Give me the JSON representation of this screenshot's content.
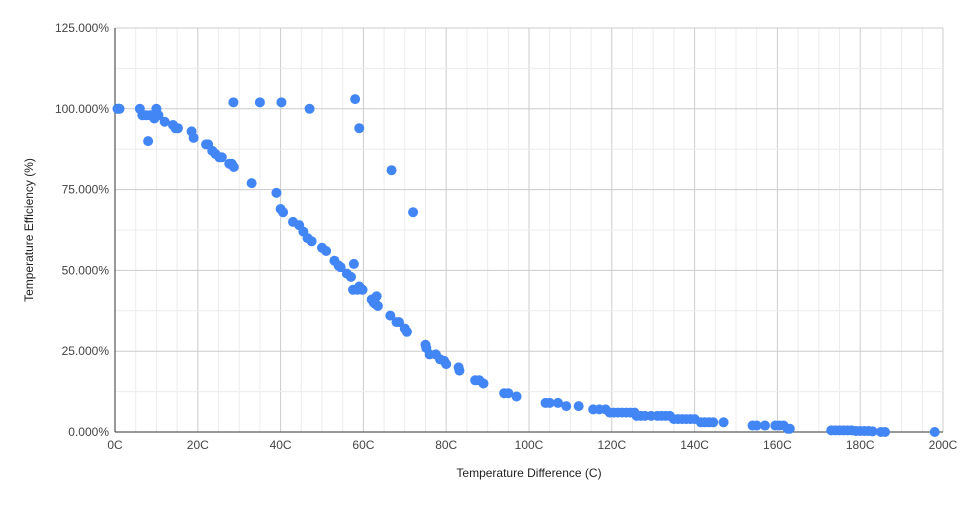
{
  "chart_data": {
    "type": "scatter",
    "title": "",
    "xlabel": "Temperature Difference (C)",
    "ylabel": "Temperature Efficiency (%)",
    "xlim": [
      0,
      200
    ],
    "ylim": [
      0,
      125
    ],
    "x_ticks": [
      0,
      20,
      40,
      60,
      80,
      100,
      120,
      140,
      160,
      180,
      200
    ],
    "x_tick_labels": [
      "0C",
      "20C",
      "40C",
      "60C",
      "80C",
      "100C",
      "120C",
      "140C",
      "160C",
      "180C",
      "200C"
    ],
    "y_ticks": [
      0,
      25,
      50,
      75,
      100,
      125
    ],
    "y_tick_labels": [
      "0.000%",
      "25.000%",
      "50.000%",
      "75.000%",
      "100.000%",
      "125.000%"
    ],
    "grid": true,
    "legend": "none",
    "color": "#4285f4",
    "points": [
      [
        0.6,
        100
      ],
      [
        0.9,
        100
      ],
      [
        1.1,
        100
      ],
      [
        6,
        100
      ],
      [
        6.6,
        98
      ],
      [
        7.5,
        98
      ],
      [
        8,
        90
      ],
      [
        8.5,
        98
      ],
      [
        9,
        98
      ],
      [
        9.5,
        97
      ],
      [
        10,
        100
      ],
      [
        10.5,
        98
      ],
      [
        12,
        96
      ],
      [
        14,
        95
      ],
      [
        14.6,
        94
      ],
      [
        15.2,
        94
      ],
      [
        18.5,
        93
      ],
      [
        19,
        91
      ],
      [
        22,
        89
      ],
      [
        22.5,
        89
      ],
      [
        23.5,
        87
      ],
      [
        24.3,
        86
      ],
      [
        25.2,
        85
      ],
      [
        25.8,
        85
      ],
      [
        27.6,
        83
      ],
      [
        28.2,
        83
      ],
      [
        28.7,
        82
      ],
      [
        28.6,
        102
      ],
      [
        33,
        77
      ],
      [
        35,
        102
      ],
      [
        39,
        74
      ],
      [
        40,
        69
      ],
      [
        40.2,
        102
      ],
      [
        40.6,
        68
      ],
      [
        43,
        65
      ],
      [
        44.5,
        64
      ],
      [
        45.5,
        62
      ],
      [
        46.5,
        60
      ],
      [
        47.5,
        59
      ],
      [
        47,
        100
      ],
      [
        50,
        57
      ],
      [
        51,
        56
      ],
      [
        53,
        53
      ],
      [
        54,
        51.5
      ],
      [
        54.5,
        51
      ],
      [
        56,
        49
      ],
      [
        57,
        48
      ],
      [
        57.5,
        44
      ],
      [
        57.7,
        52
      ],
      [
        58,
        103
      ],
      [
        58.5,
        44
      ],
      [
        59,
        94
      ],
      [
        59,
        45
      ],
      [
        59.8,
        44
      ],
      [
        62,
        41
      ],
      [
        62.5,
        40
      ],
      [
        63,
        39.5
      ],
      [
        63.2,
        42
      ],
      [
        63.5,
        39
      ],
      [
        66.5,
        36
      ],
      [
        66.8,
        81
      ],
      [
        68,
        34
      ],
      [
        68.6,
        34
      ],
      [
        70,
        32
      ],
      [
        70.5,
        31
      ],
      [
        72,
        68
      ],
      [
        75,
        27
      ],
      [
        75.2,
        26
      ],
      [
        76,
        24
      ],
      [
        77.5,
        24
      ],
      [
        78.5,
        22.5
      ],
      [
        79.5,
        22
      ],
      [
        80,
        21
      ],
      [
        83,
        20
      ],
      [
        83.2,
        19
      ],
      [
        87,
        16
      ],
      [
        88,
        16
      ],
      [
        89,
        15
      ],
      [
        94,
        12
      ],
      [
        95,
        12
      ],
      [
        97,
        11
      ],
      [
        104,
        9
      ],
      [
        105,
        9
      ],
      [
        107,
        9
      ],
      [
        109,
        8
      ],
      [
        112,
        8
      ],
      [
        115.5,
        7
      ],
      [
        117,
        7
      ],
      [
        118.5,
        7
      ],
      [
        119.5,
        6
      ],
      [
        120.5,
        6
      ],
      [
        121.5,
        6
      ],
      [
        122.5,
        6
      ],
      [
        123.5,
        6
      ],
      [
        124.5,
        6
      ],
      [
        125.5,
        6
      ],
      [
        126,
        5
      ],
      [
        127,
        5
      ],
      [
        128,
        5
      ],
      [
        129.5,
        5
      ],
      [
        131,
        5
      ],
      [
        132,
        5
      ],
      [
        133,
        5
      ],
      [
        134,
        5
      ],
      [
        135,
        4
      ],
      [
        136,
        4
      ],
      [
        137,
        4
      ],
      [
        138,
        4
      ],
      [
        139,
        4
      ],
      [
        140,
        4
      ],
      [
        141.5,
        3
      ],
      [
        142.5,
        3
      ],
      [
        143.5,
        3
      ],
      [
        144.5,
        3
      ],
      [
        147,
        3
      ],
      [
        154,
        2
      ],
      [
        155,
        2
      ],
      [
        157,
        2
      ],
      [
        159.5,
        2
      ],
      [
        160.5,
        2
      ],
      [
        161.5,
        2
      ],
      [
        162.5,
        1
      ],
      [
        163,
        1
      ],
      [
        173,
        0.5
      ],
      [
        174,
        0.5
      ],
      [
        175,
        0.5
      ],
      [
        176,
        0.5
      ],
      [
        177,
        0.5
      ],
      [
        178,
        0.5
      ],
      [
        179,
        0.3
      ],
      [
        180,
        0.3
      ],
      [
        181,
        0.3
      ],
      [
        182,
        0.3
      ],
      [
        183,
        0.2
      ],
      [
        185,
        0
      ],
      [
        186,
        0
      ],
      [
        198,
        0
      ]
    ]
  }
}
